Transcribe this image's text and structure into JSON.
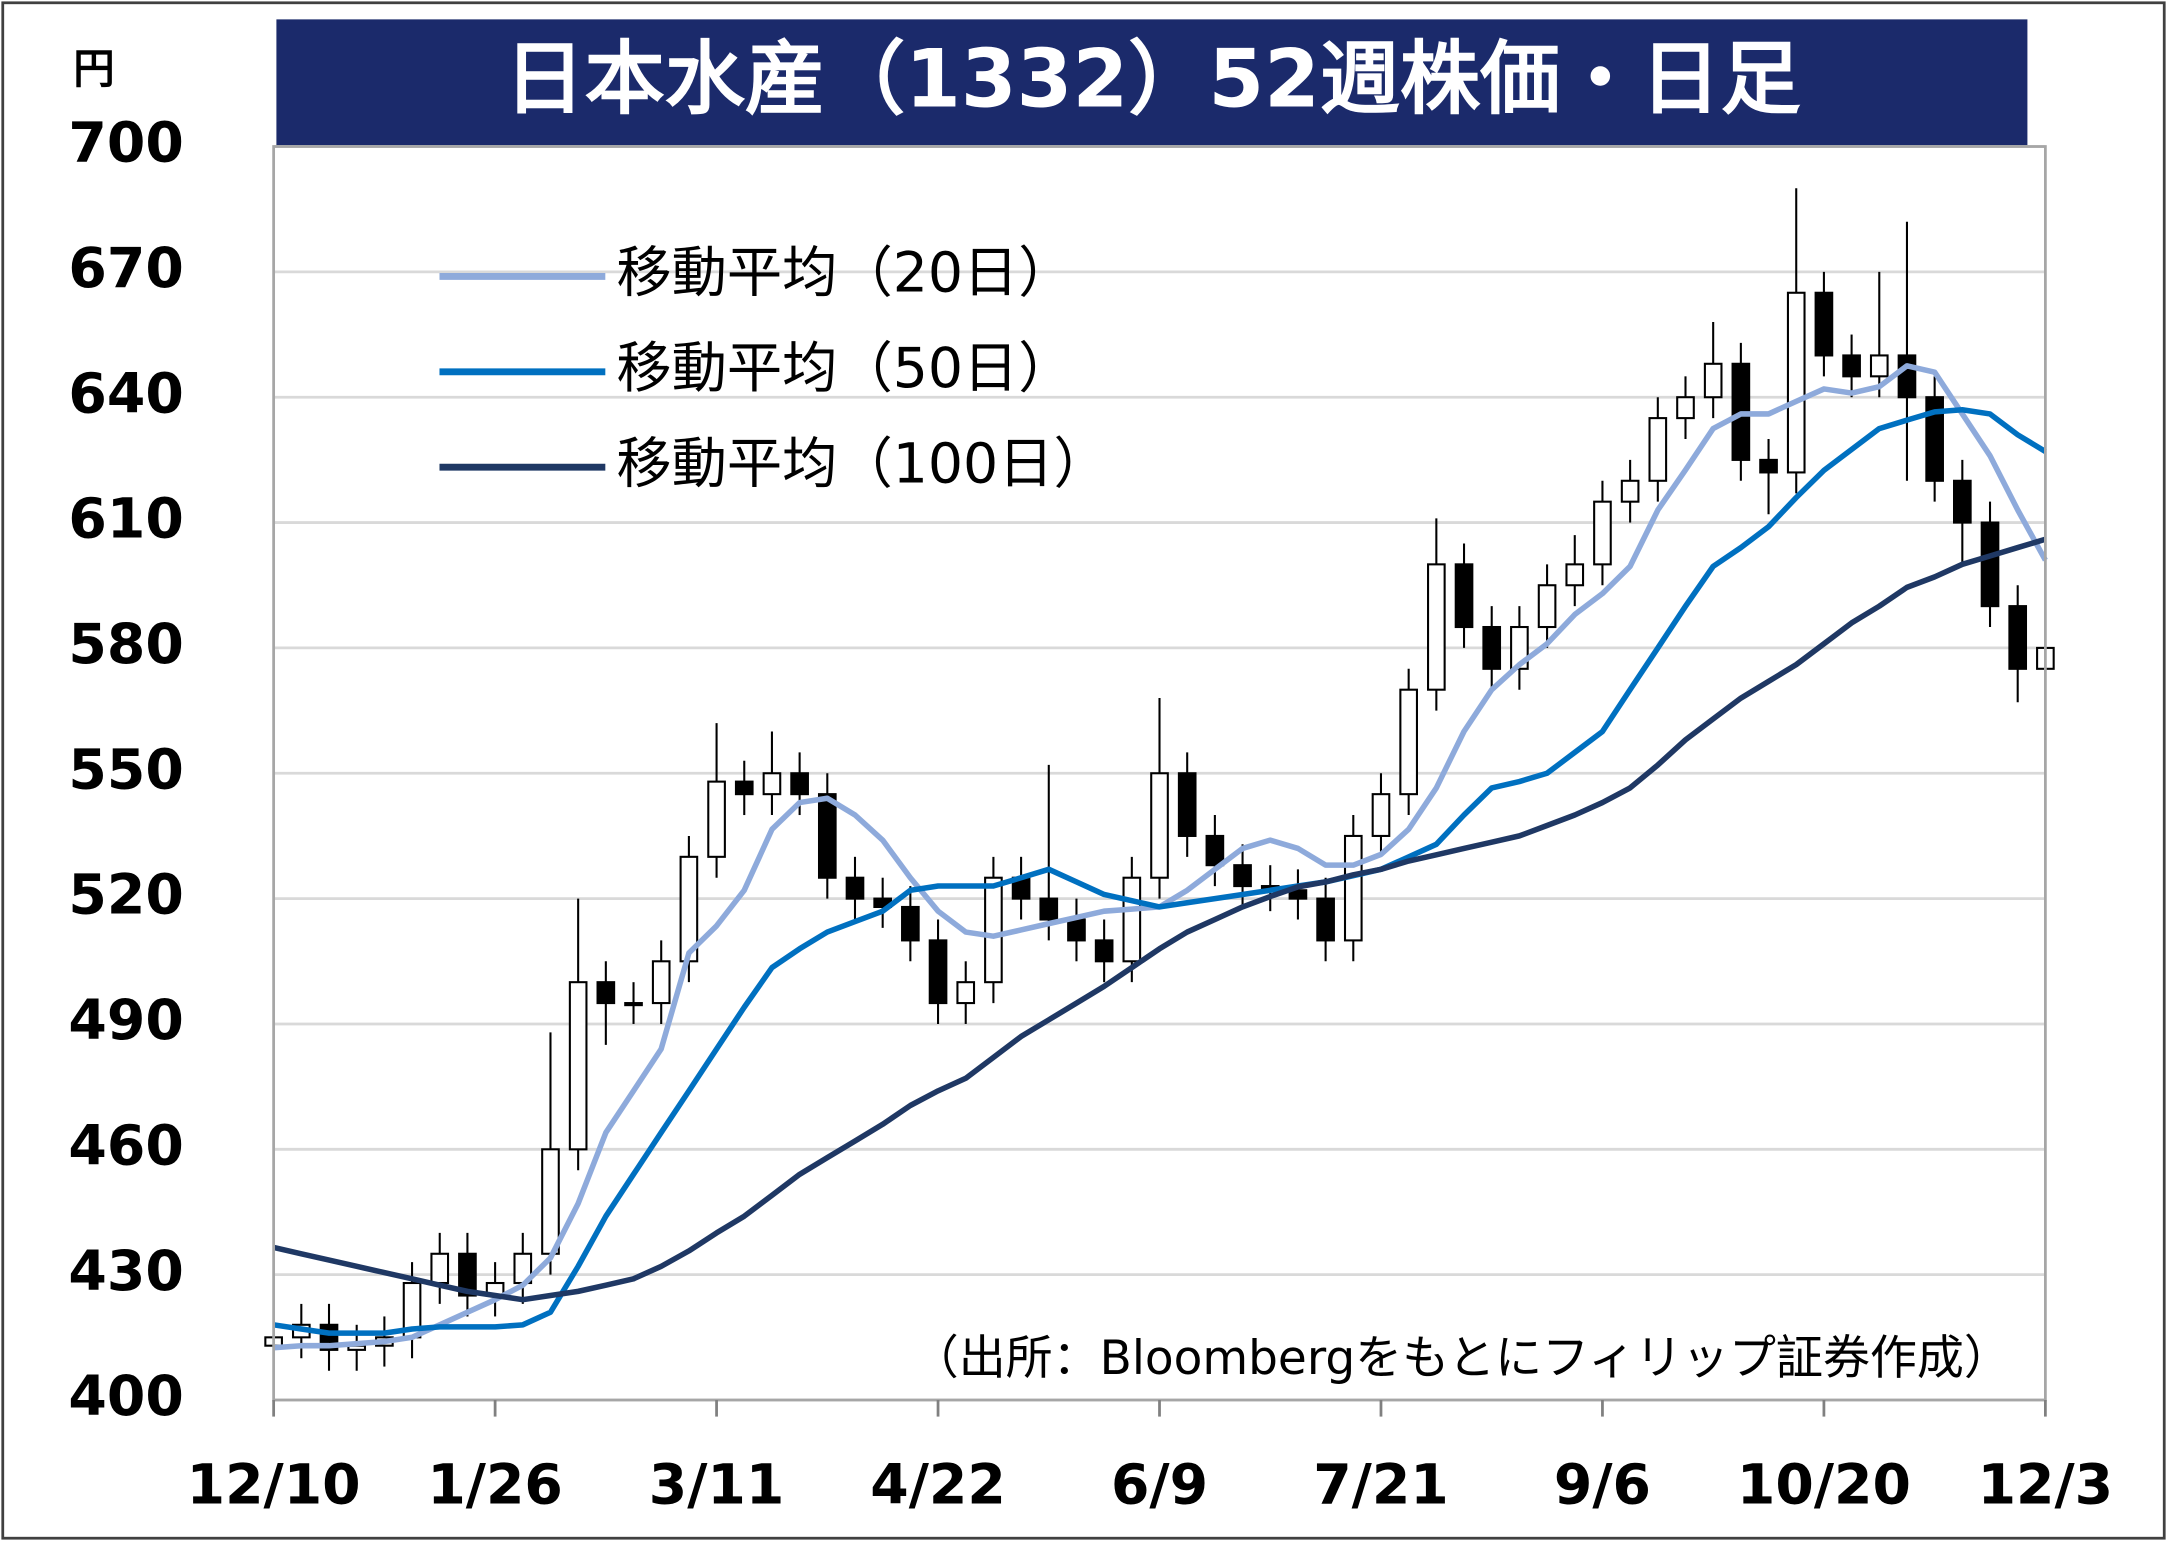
{
  "chart_data": {
    "type": "candlestick",
    "title": "日本水産（1332）52週株価・日足",
    "unit_label": "円",
    "source_note": "（出所：Bloombergをもとにフィリップ証券作成）",
    "categories": [
      "12/10",
      null,
      null,
      null,
      null,
      null,
      null,
      null,
      "1/26",
      null,
      null,
      null,
      null,
      null,
      null,
      null,
      "3/11",
      null,
      null,
      null,
      null,
      null,
      null,
      null,
      "4/22",
      null,
      null,
      null,
      null,
      null,
      null,
      null,
      "6/9",
      null,
      null,
      null,
      null,
      null,
      null,
      null,
      "7/21",
      null,
      null,
      null,
      null,
      null,
      null,
      null,
      "9/6",
      null,
      null,
      null,
      null,
      null,
      null,
      null,
      "10/20",
      null,
      null,
      null,
      null,
      null,
      null,
      null,
      "12/3"
    ],
    "ohlc": {
      "open": [
        413,
        415,
        418,
        412,
        413,
        415,
        428,
        435,
        425,
        428,
        435,
        460,
        500,
        495,
        495,
        505,
        530,
        548,
        545,
        550,
        545,
        525,
        520,
        518,
        510,
        495,
        500,
        525,
        520,
        515,
        510,
        505,
        525,
        550,
        535,
        528,
        523,
        522,
        520,
        510,
        535,
        545,
        570,
        600,
        585,
        575,
        585,
        595,
        600,
        615,
        620,
        635,
        640,
        648,
        625,
        622,
        665,
        650,
        645,
        650,
        640,
        620,
        610,
        590,
        575
      ],
      "high": [
        420,
        423,
        423,
        418,
        420,
        433,
        440,
        440,
        433,
        440,
        488,
        520,
        505,
        500,
        510,
        535,
        562,
        553,
        560,
        555,
        550,
        530,
        525,
        523,
        515,
        505,
        530,
        530,
        552,
        520,
        515,
        530,
        568,
        555,
        540,
        533,
        528,
        527,
        525,
        540,
        550,
        575,
        611,
        605,
        590,
        590,
        600,
        607,
        620,
        625,
        640,
        645,
        658,
        653,
        630,
        690,
        670,
        655,
        670,
        682,
        645,
        625,
        615,
        595,
        585
      ],
      "low": [
        408,
        410,
        407,
        407,
        408,
        410,
        423,
        420,
        420,
        423,
        430,
        455,
        485,
        490,
        490,
        500,
        525,
        540,
        540,
        540,
        520,
        515,
        513,
        505,
        490,
        490,
        495,
        515,
        510,
        505,
        500,
        500,
        520,
        530,
        523,
        518,
        517,
        515,
        505,
        505,
        530,
        540,
        565,
        580,
        570,
        570,
        580,
        590,
        595,
        610,
        615,
        630,
        635,
        620,
        612,
        617,
        645,
        640,
        640,
        620,
        615,
        600,
        585,
        567,
        565
      ],
      "close": [
        415,
        418,
        412,
        413,
        415,
        428,
        435,
        425,
        428,
        435,
        460,
        500,
        495,
        495,
        505,
        530,
        548,
        545,
        550,
        545,
        525,
        520,
        518,
        510,
        495,
        500,
        525,
        520,
        515,
        510,
        505,
        525,
        550,
        535,
        528,
        523,
        522,
        520,
        510,
        535,
        545,
        570,
        600,
        585,
        575,
        585,
        595,
        600,
        615,
        620,
        635,
        640,
        648,
        625,
        622,
        665,
        650,
        645,
        650,
        640,
        620,
        610,
        590,
        575,
        580
      ]
    },
    "series": [
      {
        "name": "移動平均（20日）",
        "color": "#8eaadb",
        "values": [
          412.5,
          413,
          413,
          413.5,
          414,
          415,
          418,
          421,
          424,
          427.5,
          434,
          447,
          464,
          474,
          484,
          507,
          513.5,
          522,
          536.6,
          543,
          544,
          540,
          534,
          525,
          517,
          512,
          511,
          512.5,
          514,
          515.5,
          517,
          517.5,
          518,
          522,
          527,
          532,
          534,
          532,
          528,
          528,
          530.6,
          536.6,
          546.5,
          560,
          570,
          576,
          581,
          588,
          593,
          599.5,
          613,
          622.6,
          632.5,
          636,
          636,
          639,
          642,
          641,
          642.5,
          647.5,
          646,
          636,
          626,
          613,
          601
        ]
      },
      {
        "name": "移動平均（50日）",
        "color": "#0070c0",
        "values": [
          418,
          417,
          416,
          416,
          416,
          417,
          417.5,
          417.5,
          417.5,
          418,
          421,
          432,
          444,
          454,
          464,
          474,
          484,
          494,
          503.5,
          508,
          512,
          514.5,
          517,
          522,
          523,
          523,
          523,
          525,
          527,
          524,
          521,
          519.5,
          518,
          519,
          520,
          521,
          522,
          523,
          524,
          525.5,
          527,
          530,
          533,
          540,
          546.5,
          548,
          550,
          555,
          560,
          570,
          580,
          590,
          599.5,
          604,
          609,
          616,
          622.5,
          627.5,
          632.5,
          634.5,
          636.5,
          637,
          636,
          631,
          627
        ]
      },
      {
        "name": "移動平均（100日）",
        "color": "#1f3864",
        "values": [
          436.5,
          435,
          433.5,
          432,
          430.5,
          429,
          427.5,
          426,
          425,
          424,
          425,
          426,
          427.5,
          429,
          432,
          435.7,
          440,
          444,
          449,
          454,
          458,
          462,
          466,
          470.5,
          474,
          477,
          482,
          487,
          491,
          495,
          499,
          503.5,
          508,
          512,
          515,
          518,
          520.5,
          522.8,
          524,
          525.7,
          527,
          529,
          530.5,
          532,
          533.5,
          535,
          537.5,
          540,
          543,
          546.5,
          552,
          558,
          563,
          568,
          572,
          576,
          581,
          586,
          590,
          594.5,
          597,
          600,
          602,
          604,
          606
        ]
      }
    ],
    "ylim": [
      400,
      700
    ],
    "yticks": [
      400,
      430,
      460,
      490,
      520,
      550,
      580,
      610,
      640,
      670,
      700
    ],
    "grid": true
  }
}
